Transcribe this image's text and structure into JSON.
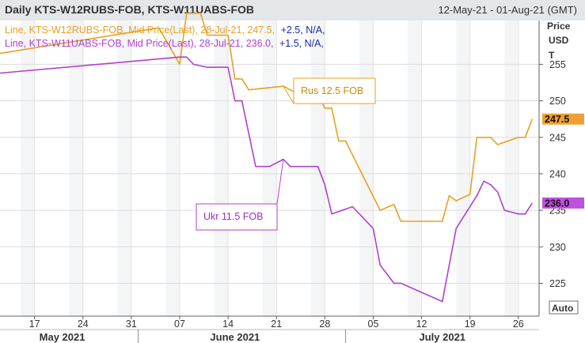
{
  "header": {
    "title": "Daily KTS-W12RUBS-FOB, KTS-W11UABS-FOB",
    "date_range": "12-May-21 - 01-Aug-21 (GMT)"
  },
  "axis": {
    "price_label_lines": [
      "Price",
      "USD",
      "T"
    ],
    "auto_label": "Auto"
  },
  "legend": {
    "line1_main": "Line, KTS-W12RUBS-FOB, Mid Price(Last), 28-Jul-21, 247.5,",
    "line1_change": "+2.5, N/A,",
    "line2_main": "Line, KTS-W11UABS-FOB, Mid Price(Last), 28-Jul-21, 236.0,",
    "line2_change": "+1.5, N/A,"
  },
  "annotations": {
    "rus": "Rus 12.5 FOB",
    "ukr": "Ukr 11.5 FOB"
  },
  "colors": {
    "rus": "#e8a020",
    "ukr": "#b040d0",
    "change": "#1a2aa0",
    "rus_badge": "#f0a030",
    "ukr_badge": "#c050e0"
  },
  "chart_data": {
    "type": "line",
    "title": "Daily KTS-W12RUBS-FOB, KTS-W11UABS-FOB",
    "ylabel": "Price USD T",
    "xlim": [
      "2021-05-12",
      "2021-07-29"
    ],
    "ylim": [
      220.5,
      261
    ],
    "yticks": [
      225,
      230,
      235,
      240,
      245,
      250,
      255
    ],
    "xticks": [
      {
        "date": "2021-05-17",
        "label": "17"
      },
      {
        "date": "2021-05-24",
        "label": "24"
      },
      {
        "date": "2021-05-31",
        "label": "31"
      },
      {
        "date": "2021-06-07",
        "label": "07"
      },
      {
        "date": "2021-06-14",
        "label": "14"
      },
      {
        "date": "2021-06-21",
        "label": "21"
      },
      {
        "date": "2021-06-28",
        "label": "28"
      },
      {
        "date": "2021-07-05",
        "label": "05"
      },
      {
        "date": "2021-07-12",
        "label": "12"
      },
      {
        "date": "2021-07-19",
        "label": "19"
      },
      {
        "date": "2021-07-26",
        "label": "26"
      }
    ],
    "months": [
      {
        "label": "May 2021",
        "center": "2021-05-21",
        "end": "2021-06-01"
      },
      {
        "label": "June 2021",
        "center": "2021-06-15",
        "end": "2021-07-01"
      },
      {
        "label": "July 2021",
        "center": "2021-07-15"
      }
    ],
    "series": [
      {
        "name": "KTS-W12RUBS-FOB",
        "last_label": "247.5",
        "points": [
          [
            "2021-05-12",
            256.5
          ],
          [
            "2021-06-04",
            260
          ],
          [
            "2021-06-07",
            255
          ],
          [
            "2021-06-08",
            262
          ],
          [
            "2021-06-10",
            262
          ],
          [
            "2021-06-11",
            259
          ],
          [
            "2021-06-14",
            259
          ],
          [
            "2021-06-15",
            253
          ],
          [
            "2021-06-16",
            253
          ],
          [
            "2021-06-17",
            251.5
          ],
          [
            "2021-06-22",
            252
          ],
          [
            "2021-06-23",
            251.5
          ],
          [
            "2021-06-24",
            251
          ],
          [
            "2021-06-27",
            251
          ],
          [
            "2021-06-28",
            249
          ],
          [
            "2021-06-29",
            249
          ],
          [
            "2021-06-30",
            244.5
          ],
          [
            "2021-07-01",
            244.5
          ],
          [
            "2021-07-06",
            235
          ],
          [
            "2021-07-08",
            235.8
          ],
          [
            "2021-07-09",
            233.5
          ],
          [
            "2021-07-15",
            233.5
          ],
          [
            "2021-07-16",
            237
          ],
          [
            "2021-07-17",
            236.3
          ],
          [
            "2021-07-19",
            237.2
          ],
          [
            "2021-07-20",
            245
          ],
          [
            "2021-07-22",
            245
          ],
          [
            "2021-07-23",
            244
          ],
          [
            "2021-07-26",
            245
          ],
          [
            "2021-07-27",
            245
          ],
          [
            "2021-07-28",
            247.5
          ]
        ]
      },
      {
        "name": "KTS-W11UABS-FOB",
        "last_label": "236.0",
        "points": [
          [
            "2021-05-12",
            253.8
          ],
          [
            "2021-06-07",
            256
          ],
          [
            "2021-06-08",
            256
          ],
          [
            "2021-06-09",
            255
          ],
          [
            "2021-06-11",
            254.6
          ],
          [
            "2021-06-14",
            254.6
          ],
          [
            "2021-06-15",
            250
          ],
          [
            "2021-06-16",
            250
          ],
          [
            "2021-06-18",
            241
          ],
          [
            "2021-06-20",
            241
          ],
          [
            "2021-06-22",
            242
          ],
          [
            "2021-06-23",
            241
          ],
          [
            "2021-06-27",
            241
          ],
          [
            "2021-06-28",
            238.5
          ],
          [
            "2021-06-29",
            234.5
          ],
          [
            "2021-07-02",
            235.5
          ],
          [
            "2021-07-05",
            232.5
          ],
          [
            "2021-07-06",
            227.5
          ],
          [
            "2021-07-08",
            225
          ],
          [
            "2021-07-09",
            225
          ],
          [
            "2021-07-15",
            222.5
          ],
          [
            "2021-07-17",
            232.5
          ],
          [
            "2021-07-20",
            237
          ],
          [
            "2021-07-21",
            239
          ],
          [
            "2021-07-22",
            238.5
          ],
          [
            "2021-07-23",
            237.5
          ],
          [
            "2021-07-24",
            235
          ],
          [
            "2021-07-26",
            234.5
          ],
          [
            "2021-07-27",
            234.5
          ],
          [
            "2021-07-28",
            236
          ]
        ]
      }
    ]
  }
}
